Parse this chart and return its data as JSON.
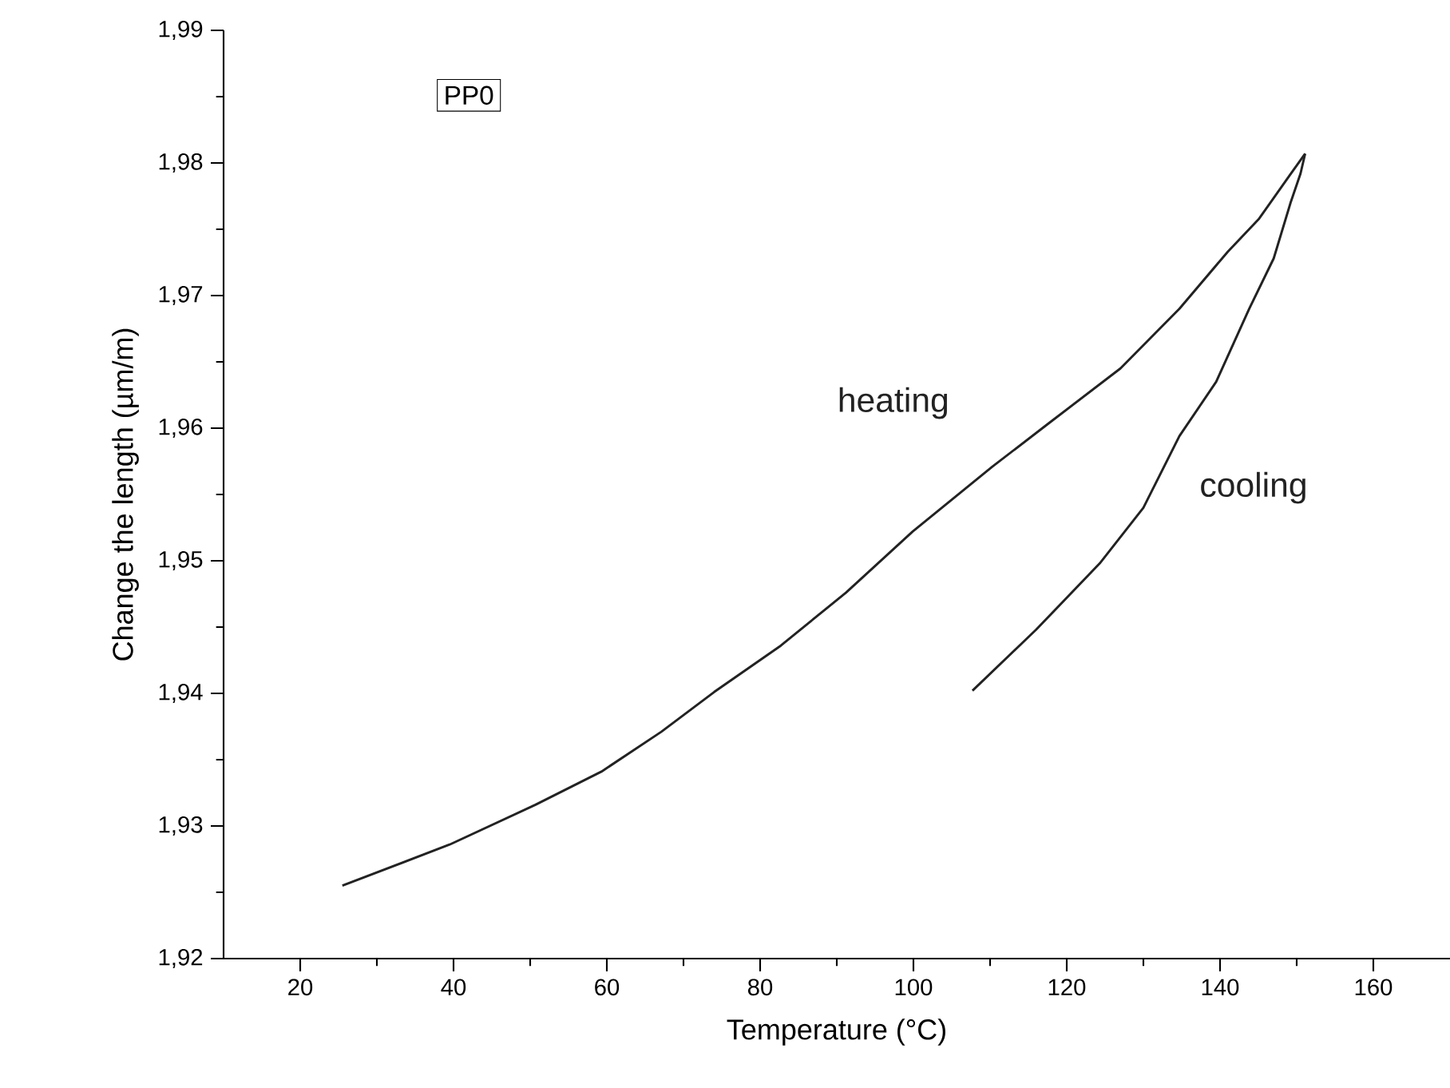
{
  "chart_data": {
    "type": "line",
    "xlabel": "Temperature (°C)",
    "ylabel": "Change the length (µm/m)",
    "annotations": [
      "PP0"
    ],
    "xlim": [
      10,
      170
    ],
    "ylim": [
      1.92,
      1.99
    ],
    "xticks": [
      20,
      40,
      60,
      80,
      100,
      120,
      140,
      160
    ],
    "yticks": [
      {
        "value": 1.92,
        "label": "1,92"
      },
      {
        "value": 1.93,
        "label": "1,93"
      },
      {
        "value": 1.94,
        "label": "1,94"
      },
      {
        "value": 1.95,
        "label": "1,95"
      },
      {
        "value": 1.96,
        "label": "1,96"
      },
      {
        "value": 1.97,
        "label": "1,97"
      },
      {
        "value": 1.98,
        "label": "1,98"
      },
      {
        "value": 1.99,
        "label": "1,99"
      }
    ],
    "grid": false,
    "legend": false,
    "marker": "none",
    "line_style": "solid",
    "series": [
      {
        "name": "heating",
        "color": "#222222",
        "x": [
          25.5,
          39.5,
          50.7,
          59.3,
          67.1,
          74,
          82.7,
          91.2,
          99.9,
          110.3,
          117.5,
          127,
          134.7,
          141,
          145.1,
          149,
          151.1
        ],
        "values": [
          1.9255,
          1.9286,
          1.9316,
          1.9341,
          1.9371,
          1.9401,
          1.9436,
          1.9476,
          1.9522,
          1.9571,
          1.9603,
          1.9645,
          1.969,
          1.9733,
          1.9758,
          1.979,
          1.9807
        ]
      },
      {
        "name": "cooling",
        "color": "#222222",
        "x": [
          107.7,
          116,
          124.3,
          130,
          134.7,
          139.5,
          143.8,
          147,
          149.2,
          150.5,
          151.1
        ],
        "values": [
          1.9402,
          1.9448,
          1.9498,
          1.954,
          1.9594,
          1.9635,
          1.969,
          1.9728,
          1.977,
          1.9792,
          1.9807
        ]
      }
    ]
  }
}
